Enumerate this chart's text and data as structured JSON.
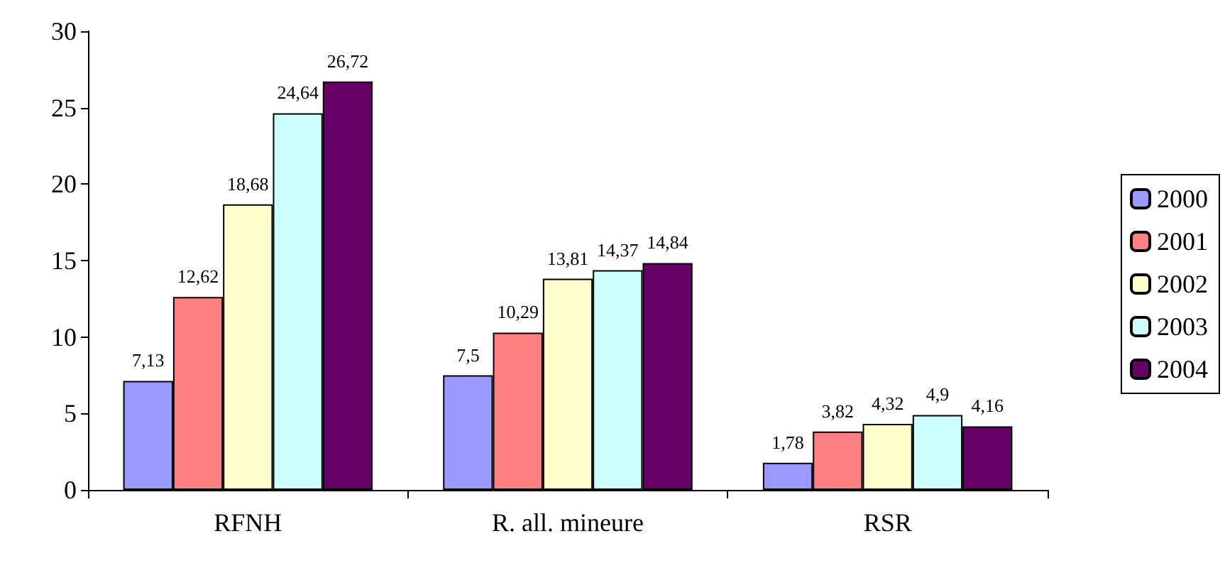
{
  "chart_data": {
    "type": "bar",
    "categories": [
      "RFNH",
      "R. all. mineure",
      "RSR"
    ],
    "series": [
      {
        "name": "2000",
        "color": "#9999ff",
        "values": [
          7.13,
          7.5,
          1.78
        ],
        "value_labels": [
          "7,13",
          "7,5",
          "1,78"
        ]
      },
      {
        "name": "2001",
        "color": "#ff8080",
        "values": [
          12.62,
          10.29,
          3.82
        ],
        "value_labels": [
          "12,62",
          "10,29",
          "3,82"
        ]
      },
      {
        "name": "2002",
        "color": "#ffffcc",
        "values": [
          18.68,
          13.81,
          4.32
        ],
        "value_labels": [
          "18,68",
          "13,81",
          "4,32"
        ]
      },
      {
        "name": "2003",
        "color": "#ccffff",
        "values": [
          24.64,
          14.37,
          4.9
        ],
        "value_labels": [
          "24,64",
          "14,37",
          "4,9"
        ]
      },
      {
        "name": "2004",
        "color": "#660066",
        "values": [
          26.72,
          14.84,
          4.16
        ],
        "value_labels": [
          "26,72",
          "14,84",
          "4,16"
        ]
      }
    ],
    "ylim": [
      0,
      30
    ],
    "yticks": [
      0,
      5,
      10,
      15,
      20,
      25,
      30
    ],
    "grid": false,
    "legend": "right"
  }
}
